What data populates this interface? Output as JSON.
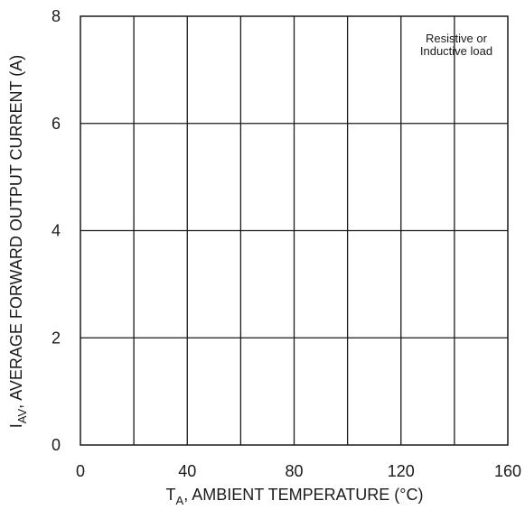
{
  "chart_data": {
    "type": "line",
    "title": "",
    "x_axis": {
      "label_main": "T",
      "label_sub": "A",
      "label_rest": ", AMBIENT TEMPERATURE (°C)",
      "range": [
        0,
        160
      ],
      "tick_labels": [
        {
          "value": 0,
          "text": "0"
        },
        {
          "value": 40,
          "text": "40"
        },
        {
          "value": 80,
          "text": "80"
        },
        {
          "value": 120,
          "text": "120"
        },
        {
          "value": 160,
          "text": "160"
        }
      ],
      "gridlines": [
        20,
        40,
        60,
        80,
        100,
        120,
        140
      ]
    },
    "y_axis": {
      "label_main": "I",
      "label_sub": "AV",
      "label_rest": ", AVERAGE FORWARD OUTPUT CURRENT (A)",
      "range": [
        0,
        8
      ],
      "tick_labels": [
        {
          "value": 0,
          "text": "0"
        },
        {
          "value": 2,
          "text": "2"
        },
        {
          "value": 4,
          "text": "4"
        },
        {
          "value": 6,
          "text": "6"
        },
        {
          "value": 8,
          "text": "8"
        }
      ],
      "gridlines": [
        2,
        4,
        6
      ]
    },
    "annotation": [
      "Resistive or",
      "Inductive load"
    ],
    "series": [],
    "grid": true
  }
}
